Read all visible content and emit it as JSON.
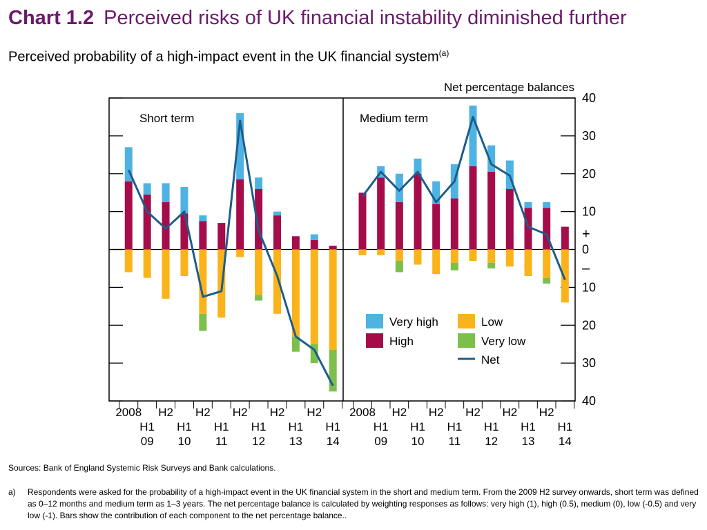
{
  "title": {
    "number": "Chart 1.2",
    "text": "Perceived risks of UK financial instability diminished further"
  },
  "subtitle": {
    "text": "Perceived probability of a high-impact event in the UK financial system",
    "note_marker": "(a)"
  },
  "sources": "Sources:  Bank of England Systemic Risk Surveys and Bank calculations.",
  "footnote": {
    "label": "a)",
    "text": "Respondents were asked for the probability of a high-impact event in the UK financial system in the short and medium term.  From the 2009 H2 survey onwards, short term was defined as 0–12 months and medium term as 1–3 years.  The net percentage balance is calculated by weighting responses as follows:  very high (1), high (0.5), medium (0), low (-0.5) and very low (-1).  Bars show the contribution of each component to the net percentage balance.."
  },
  "colors": {
    "very_high": "#4eb3e3",
    "high": "#a50d4a",
    "low": "#fbb31a",
    "very_low": "#7cc04b",
    "net": "#1c5d8c",
    "title": "#6b1a6e"
  },
  "chart_data": {
    "type": "bar",
    "subtype": "stacked bar with line overlay, two panels",
    "ylabel": "Net percentage balances",
    "ylim": [
      -40,
      40
    ],
    "y_ticks": [
      {
        "value": 40,
        "label": "40"
      },
      {
        "value": 30,
        "label": "30"
      },
      {
        "value": 20,
        "label": "20"
      },
      {
        "value": 10,
        "label": "10"
      },
      {
        "value": 0,
        "label": "0"
      },
      {
        "value": -10,
        "label": "10"
      },
      {
        "value": -20,
        "label": "20"
      },
      {
        "value": -30,
        "label": "30"
      },
      {
        "value": -40,
        "label": "40"
      }
    ],
    "sign_labels": {
      "plus": "+",
      "minus": "–"
    },
    "legend": {
      "placement": "bottom-right",
      "entries": [
        {
          "key": "very_high",
          "label": "Very high",
          "kind": "box"
        },
        {
          "key": "low",
          "label": "Low",
          "kind": "box"
        },
        {
          "key": "high",
          "label": "High",
          "kind": "box"
        },
        {
          "key": "very_low",
          "label": "Very low",
          "kind": "box"
        },
        {
          "key": "net",
          "label": "Net",
          "kind": "line"
        }
      ]
    },
    "x_labels": [
      {
        "index": 0,
        "top": "2008"
      },
      {
        "index": 1,
        "top": "H1",
        "bottom": "09"
      },
      {
        "index": 2,
        "top": "H2"
      },
      {
        "index": 3,
        "top": "H1",
        "bottom": "10"
      },
      {
        "index": 4,
        "top": "H2"
      },
      {
        "index": 5,
        "top": "H1",
        "bottom": "11"
      },
      {
        "index": 6,
        "top": "H2"
      },
      {
        "index": 7,
        "top": "H1",
        "bottom": "12"
      },
      {
        "index": 8,
        "top": "H2"
      },
      {
        "index": 9,
        "top": "H1",
        "bottom": "13"
      },
      {
        "index": 10,
        "top": "H2"
      },
      {
        "index": 11,
        "top": "H1",
        "bottom": "14"
      }
    ],
    "panels": [
      {
        "name": "Short term",
        "very_high": [
          9,
          3,
          5,
          7,
          1.5,
          0,
          17.5,
          3,
          1,
          0,
          1.5,
          0
        ],
        "high": [
          18,
          14.5,
          12.5,
          9.5,
          7.5,
          7,
          18.5,
          16,
          9,
          3.5,
          2.5,
          1
        ],
        "low": [
          -6,
          -7.5,
          -13,
          -7,
          -17,
          -18,
          -2,
          -12,
          -17,
          -23,
          -25,
          -26.5
        ],
        "very_low": [
          0,
          0,
          0,
          0,
          -4.5,
          0,
          0,
          -1.5,
          0,
          -4,
          -5,
          -11
        ],
        "net": [
          21,
          10,
          5.5,
          10,
          -12.5,
          -11,
          34,
          5,
          -7,
          -23,
          -26.5,
          -36
        ]
      },
      {
        "name": "Medium term",
        "very_high": [
          0,
          3,
          7.5,
          4,
          6,
          9,
          16,
          7,
          7.5,
          1.5,
          1.5,
          0
        ],
        "high": [
          15,
          19,
          12.5,
          20,
          12,
          13.5,
          22,
          20.5,
          16,
          11,
          11,
          6
        ],
        "low": [
          -1.5,
          -1.5,
          -3,
          -4,
          -6.5,
          -3.5,
          -3,
          -3.5,
          -4.5,
          -7,
          -7.5,
          -14
        ],
        "very_low": [
          0,
          0,
          -3,
          0,
          0,
          -2,
          0,
          -1.5,
          0,
          0,
          -1.5,
          0
        ],
        "net": [
          14,
          20.5,
          15.5,
          20.5,
          12.5,
          18,
          35,
          22.5,
          19.5,
          6,
          4,
          -8
        ]
      }
    ]
  }
}
